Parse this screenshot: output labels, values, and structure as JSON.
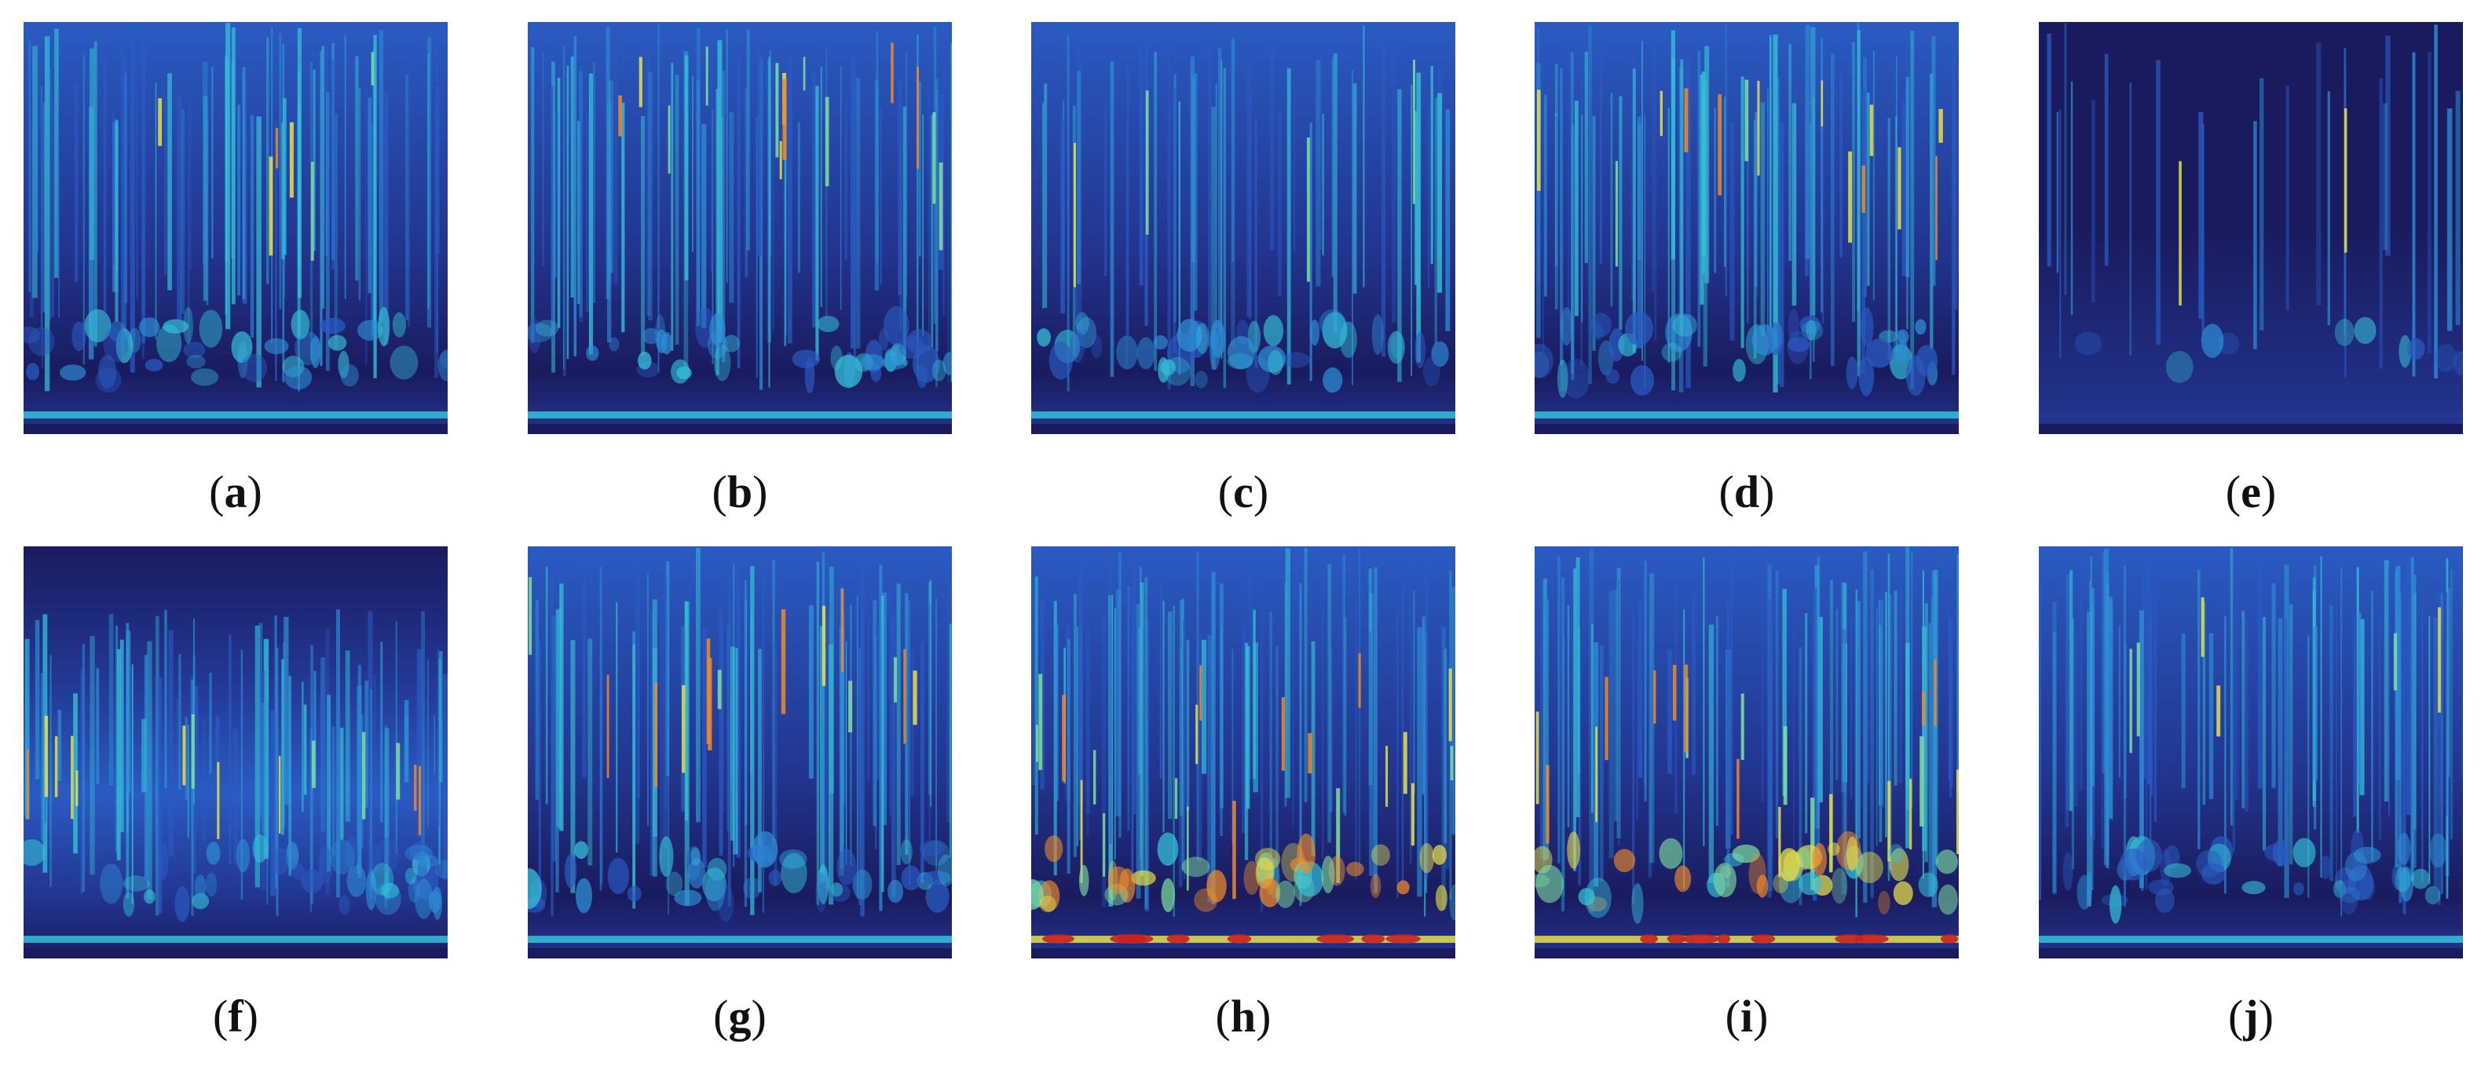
{
  "figure": {
    "panels": [
      {
        "label": "a",
        "variant": "uniform-mid"
      },
      {
        "label": "b",
        "variant": "bright-streaks"
      },
      {
        "label": "c",
        "variant": "sparse-spikes"
      },
      {
        "label": "d",
        "variant": "bright-streaks"
      },
      {
        "label": "e",
        "variant": "dark-two-spikes"
      },
      {
        "label": "f",
        "variant": "dark-top-mid-band"
      },
      {
        "label": "g",
        "variant": "bright-streaks"
      },
      {
        "label": "h",
        "variant": "hot-bottom"
      },
      {
        "label": "i",
        "variant": "hot-bottom"
      },
      {
        "label": "j",
        "variant": "uniform-mid"
      }
    ],
    "colormap": [
      "#1a1b5e",
      "#22358f",
      "#2a5bc2",
      "#2e8fd6",
      "#35c2d8",
      "#7fe0a0",
      "#e8e04a",
      "#f08a2a",
      "#c8201e"
    ]
  }
}
